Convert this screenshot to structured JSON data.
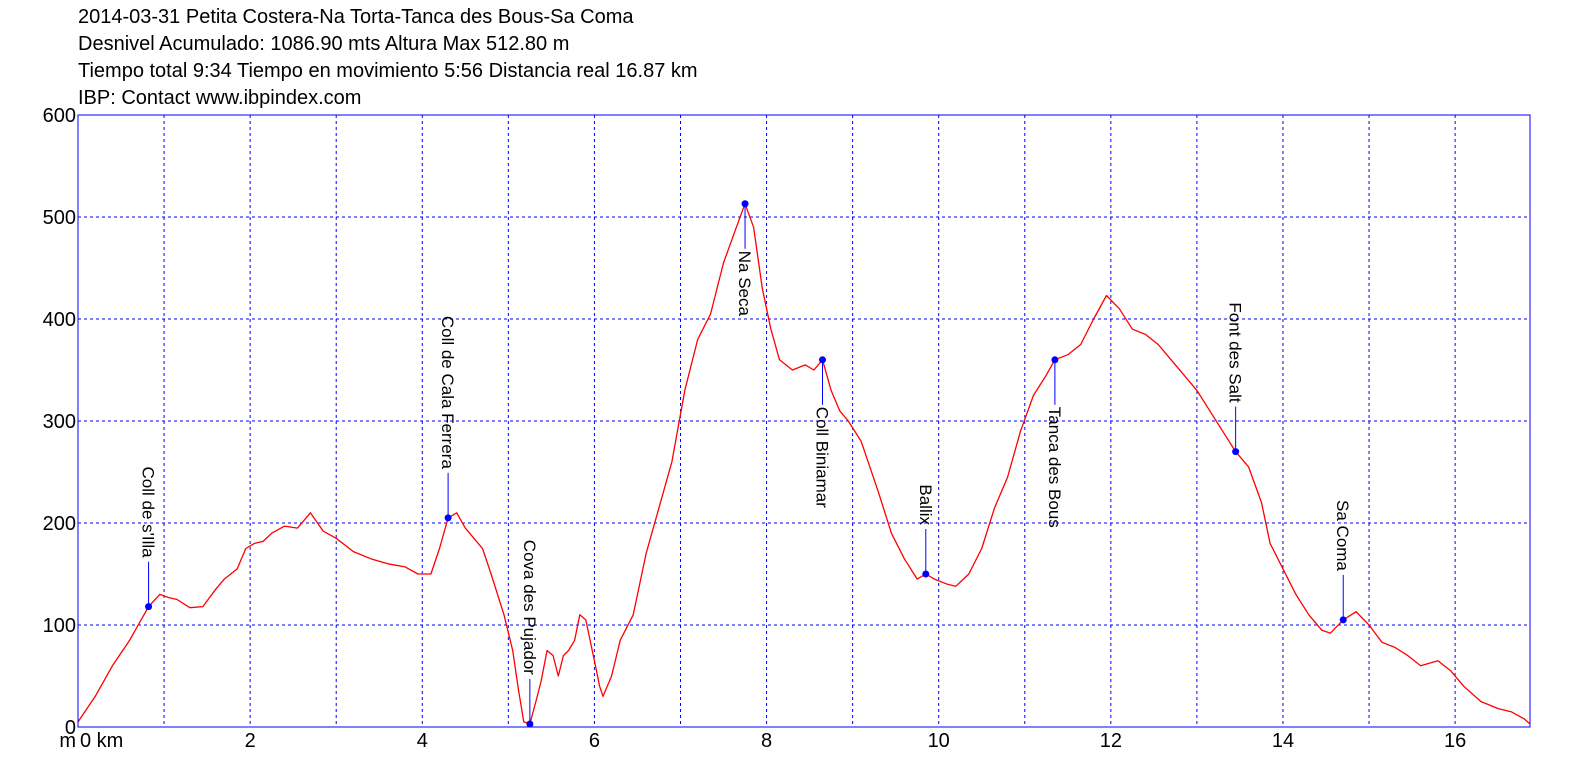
{
  "header": {
    "line1": "2014-03-31 Petita Costera-Na Torta-Tanca des Bous-Sa Coma",
    "line2": "Desnivel Acumulado: 1086.90 mts  Altura Max 512.80 m",
    "line3": "Tiempo total 9:34 Tiempo en movimiento 5:56 Distancia real 16.87 km",
    "line4": "IBP:  Contact www.ibpindex.com"
  },
  "axis_units": {
    "y_unit": "m",
    "x_unit": "km"
  },
  "colors": {
    "profile": "#ff0000",
    "frame": "#0000ff",
    "grid": "#0000ff",
    "waypoint": "#0000ff",
    "text": "#000000"
  },
  "chart_data": {
    "type": "line",
    "title": "2014-03-31 Petita Costera-Na Torta-Tanca des Bous-Sa Coma",
    "xlabel": "km",
    "ylabel": "m",
    "xlim": [
      0,
      16.87
    ],
    "ylim": [
      0,
      600
    ],
    "xticks": [
      0,
      2,
      4,
      6,
      8,
      10,
      12,
      14,
      16
    ],
    "xtick_labels": [
      "0 km",
      "2",
      "4",
      "6",
      "8",
      "10",
      "12",
      "14",
      "16"
    ],
    "yticks": [
      0,
      100,
      200,
      300,
      400,
      500,
      600
    ],
    "ytick_labels": [
      "0",
      "100",
      "200",
      "300",
      "400",
      "500",
      "600"
    ],
    "grid": true,
    "series": [
      {
        "points": [
          [
            0,
            5
          ],
          [
            0.2,
            30
          ],
          [
            0.4,
            60
          ],
          [
            0.6,
            85
          ],
          [
            0.82,
            118
          ],
          [
            0.95,
            130
          ],
          [
            1.05,
            127
          ],
          [
            1.15,
            125
          ],
          [
            1.3,
            117
          ],
          [
            1.45,
            118
          ],
          [
            1.6,
            135
          ],
          [
            1.7,
            145
          ],
          [
            1.85,
            155
          ],
          [
            1.95,
            175
          ],
          [
            2.05,
            180
          ],
          [
            2.15,
            182
          ],
          [
            2.25,
            190
          ],
          [
            2.4,
            197
          ],
          [
            2.55,
            195
          ],
          [
            2.7,
            210
          ],
          [
            2.85,
            192
          ],
          [
            3.0,
            185
          ],
          [
            3.2,
            172
          ],
          [
            3.4,
            165
          ],
          [
            3.6,
            160
          ],
          [
            3.8,
            157
          ],
          [
            3.95,
            150
          ],
          [
            4.1,
            150
          ],
          [
            4.2,
            175
          ],
          [
            4.3,
            205
          ],
          [
            4.4,
            210
          ],
          [
            4.5,
            195
          ],
          [
            4.6,
            185
          ],
          [
            4.7,
            175
          ],
          [
            4.8,
            150
          ],
          [
            4.95,
            110
          ],
          [
            5.05,
            75
          ],
          [
            5.12,
            35
          ],
          [
            5.18,
            5
          ],
          [
            5.25,
            3
          ],
          [
            5.32,
            25
          ],
          [
            5.38,
            45
          ],
          [
            5.45,
            75
          ],
          [
            5.52,
            70
          ],
          [
            5.58,
            50
          ],
          [
            5.64,
            70
          ],
          [
            5.7,
            75
          ],
          [
            5.77,
            85
          ],
          [
            5.83,
            110
          ],
          [
            5.9,
            105
          ],
          [
            6.0,
            65
          ],
          [
            6.06,
            40
          ],
          [
            6.1,
            30
          ],
          [
            6.2,
            50
          ],
          [
            6.3,
            85
          ],
          [
            6.45,
            110
          ],
          [
            6.6,
            170
          ],
          [
            6.75,
            215
          ],
          [
            6.9,
            260
          ],
          [
            7.05,
            330
          ],
          [
            7.2,
            380
          ],
          [
            7.35,
            405
          ],
          [
            7.5,
            455
          ],
          [
            7.65,
            490
          ],
          [
            7.75,
            513
          ],
          [
            7.85,
            490
          ],
          [
            7.95,
            430
          ],
          [
            8.05,
            390
          ],
          [
            8.15,
            360
          ],
          [
            8.3,
            350
          ],
          [
            8.45,
            355
          ],
          [
            8.55,
            350
          ],
          [
            8.65,
            360
          ],
          [
            8.75,
            330
          ],
          [
            8.85,
            310
          ],
          [
            8.95,
            300
          ],
          [
            9.1,
            280
          ],
          [
            9.3,
            230
          ],
          [
            9.45,
            190
          ],
          [
            9.6,
            165
          ],
          [
            9.75,
            145
          ],
          [
            9.85,
            150
          ],
          [
            9.95,
            145
          ],
          [
            10.1,
            140
          ],
          [
            10.2,
            138
          ],
          [
            10.35,
            150
          ],
          [
            10.5,
            175
          ],
          [
            10.65,
            215
          ],
          [
            10.8,
            245
          ],
          [
            10.95,
            290
          ],
          [
            11.1,
            325
          ],
          [
            11.25,
            345
          ],
          [
            11.35,
            360
          ],
          [
            11.5,
            365
          ],
          [
            11.65,
            375
          ],
          [
            11.8,
            400
          ],
          [
            11.95,
            423
          ],
          [
            12.1,
            410
          ],
          [
            12.25,
            390
          ],
          [
            12.4,
            385
          ],
          [
            12.55,
            375
          ],
          [
            12.7,
            360
          ],
          [
            12.85,
            345
          ],
          [
            13.0,
            330
          ],
          [
            13.15,
            310
          ],
          [
            13.3,
            290
          ],
          [
            13.45,
            270
          ],
          [
            13.6,
            255
          ],
          [
            13.75,
            220
          ],
          [
            13.85,
            180
          ],
          [
            14.0,
            155
          ],
          [
            14.15,
            130
          ],
          [
            14.3,
            110
          ],
          [
            14.45,
            95
          ],
          [
            14.55,
            92
          ],
          [
            14.7,
            105
          ],
          [
            14.85,
            113
          ],
          [
            15.0,
            100
          ],
          [
            15.15,
            83
          ],
          [
            15.3,
            78
          ],
          [
            15.45,
            70
          ],
          [
            15.6,
            60
          ],
          [
            15.8,
            65
          ],
          [
            15.95,
            55
          ],
          [
            16.1,
            40
          ],
          [
            16.3,
            25
          ],
          [
            16.5,
            18
          ],
          [
            16.65,
            15
          ],
          [
            16.8,
            8
          ],
          [
            16.87,
            3
          ]
        ]
      }
    ],
    "waypoints": [
      {
        "name": "Coll de s'Illa",
        "x": 0.82,
        "y": 118,
        "label_side": "above"
      },
      {
        "name": "Coll de Cala Ferrera",
        "x": 4.3,
        "y": 205,
        "label_side": "above"
      },
      {
        "name": "Cova des Pujador",
        "x": 5.25,
        "y": 3,
        "label_side": "above"
      },
      {
        "name": "Na Seca",
        "x": 7.75,
        "y": 513,
        "label_side": "below"
      },
      {
        "name": "Coll Biniamar",
        "x": 8.65,
        "y": 360,
        "label_side": "below"
      },
      {
        "name": "Ballix",
        "x": 9.85,
        "y": 150,
        "label_side": "above"
      },
      {
        "name": "Tanca des Bous",
        "x": 11.35,
        "y": 360,
        "label_side": "below"
      },
      {
        "name": "Font des Salt",
        "x": 13.45,
        "y": 270,
        "label_side": "above"
      },
      {
        "name": "Sa Coma",
        "x": 14.7,
        "y": 105,
        "label_side": "above"
      }
    ]
  }
}
